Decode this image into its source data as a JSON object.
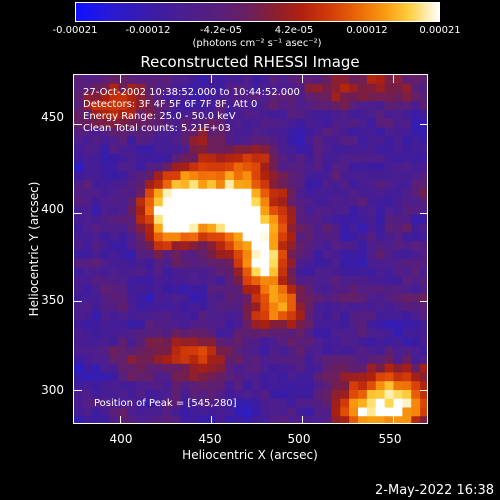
{
  "colorbar": {
    "ticks": [
      "-0.00021",
      "-0.00012",
      "-4.2e-05",
      "4.2e-05",
      "0.00012",
      "0.00021"
    ],
    "units": "(photons cm⁻² s⁻¹ asec⁻²)",
    "range": [
      -0.00021,
      0.00021
    ]
  },
  "annotations": {
    "time": "27-Oct-2002 10:38:52.000 to 10:44:52.000",
    "detectors": "Detectors: 3F 4F 5F 6F 7F 8F, Att 0",
    "energy": "Energy Range: 25.0 - 50.0 keV",
    "clean": "Clean    Total counts: 5.21E+03",
    "peak": "Position of Peak = [545,280]"
  },
  "footer": {
    "date": "2-May-2022 16:38"
  },
  "chart_data": {
    "type": "heatmap",
    "title": "Reconstructed RHESSI Image",
    "xlabel": "Heliocentric X (arcsec)",
    "ylabel": "Heliocentric Y (arcsec)",
    "xlim": [
      375,
      570
    ],
    "ylim": [
      280,
      478
    ],
    "xticks": [
      "400",
      "450",
      "500",
      "550"
    ],
    "yticks": [
      "450",
      "400",
      "350",
      "300"
    ],
    "xtick_values": [
      400,
      450,
      500,
      550
    ],
    "ytick_values": [
      450,
      400,
      350,
      300
    ],
    "grid_size": [
      40,
      40
    ],
    "sources": [
      {
        "x": 455,
        "y": 410,
        "sx": 22,
        "sy": 16,
        "amp": 1.0
      },
      {
        "x": 428,
        "y": 398,
        "sx": 12,
        "sy": 12,
        "amp": 0.8
      },
      {
        "x": 472,
        "y": 392,
        "sx": 14,
        "sy": 12,
        "amp": 0.7
      },
      {
        "x": 480,
        "y": 365,
        "sx": 10,
        "sy": 15,
        "amp": 0.75
      },
      {
        "x": 492,
        "y": 346,
        "sx": 10,
        "sy": 8,
        "amp": 0.6
      },
      {
        "x": 548,
        "y": 292,
        "sx": 18,
        "sy": 14,
        "amp": 1.0
      },
      {
        "x": 440,
        "y": 320,
        "sx": 20,
        "sy": 10,
        "amp": 0.55
      },
      {
        "x": 395,
        "y": 462,
        "sx": 16,
        "sy": 10,
        "amp": 0.6
      },
      {
        "x": 530,
        "y": 470,
        "sx": 22,
        "sy": 8,
        "amp": 0.45
      }
    ],
    "noise_seed": 7,
    "background_level": 0.32
  }
}
